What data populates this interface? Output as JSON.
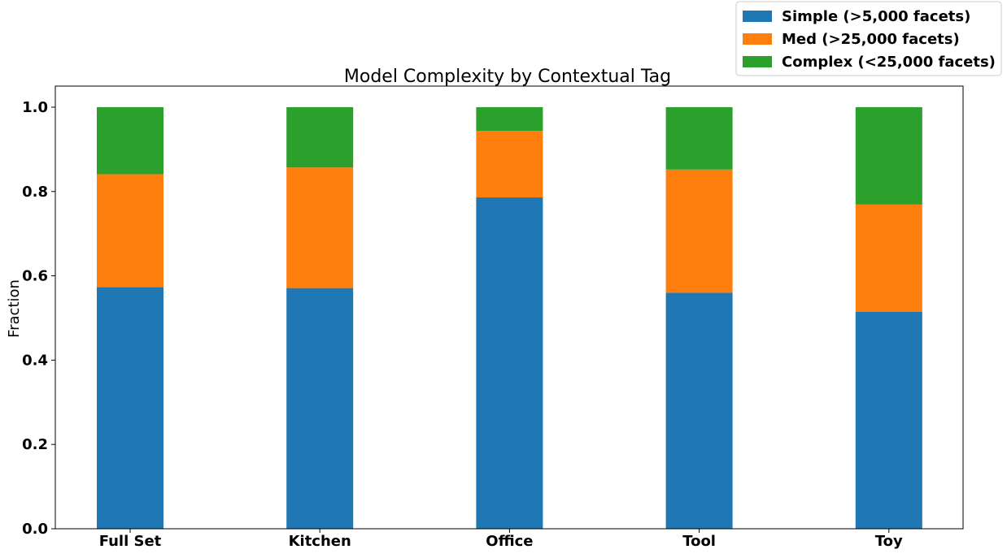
{
  "chart_data": {
    "type": "bar",
    "stacked": true,
    "title": "Model Complexity by Contextual Tag",
    "xlabel": "",
    "ylabel": "Fraction",
    "categories": [
      "Full Set",
      "Kitchen",
      "Office",
      "Tool",
      "Toy"
    ],
    "ylim": [
      0,
      1.05
    ],
    "yticks": [
      0.0,
      0.2,
      0.4,
      0.6,
      0.8,
      1.0
    ],
    "ytick_labels": [
      "0.0",
      "0.2",
      "0.4",
      "0.6",
      "0.8",
      "1.0"
    ],
    "grid": false,
    "legend_position": "top-right",
    "series": [
      {
        "name": "Simple (>5,000 facets)",
        "color": "#1f77b4",
        "values": [
          0.573,
          0.571,
          0.786,
          0.56,
          0.515
        ]
      },
      {
        "name": "Med (>25,000 facets)",
        "color": "#ff7f0e",
        "values": [
          0.268,
          0.286,
          0.158,
          0.292,
          0.254
        ]
      },
      {
        "name": "Complex (<25,000 facets)",
        "color": "#2ca02c",
        "values": [
          0.159,
          0.143,
          0.056,
          0.148,
          0.231
        ]
      }
    ]
  }
}
